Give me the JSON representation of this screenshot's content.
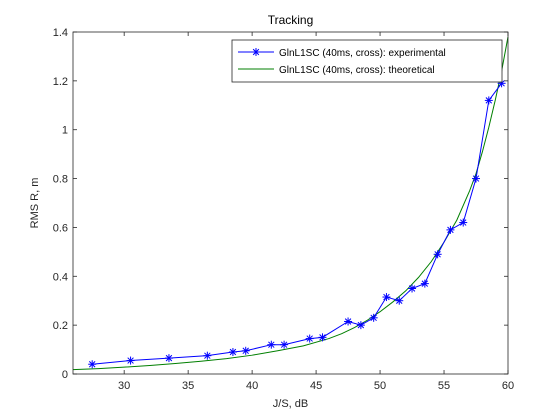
{
  "chart_data": {
    "type": "line",
    "title": "Tracking",
    "xlabel": "J/S, dB",
    "ylabel": "RMS R, m",
    "xlim": [
      26,
      60
    ],
    "ylim": [
      0,
      1.4
    ],
    "xticks": [
      30,
      35,
      40,
      45,
      50,
      55,
      60
    ],
    "yticks": [
      0,
      0.2,
      0.4,
      0.6,
      0.8,
      1,
      1.2,
      1.4
    ],
    "xtick_labels": [
      "30",
      "35",
      "40",
      "45",
      "50",
      "55",
      "60"
    ],
    "ytick_labels": [
      "0",
      "0.2",
      "0.4",
      "0.6",
      "0.8",
      "1",
      "1.2",
      "1.4"
    ],
    "grid": false,
    "legend_position": "top-right",
    "series": [
      {
        "name": "GlnL1SC (40ms, cross): experimental",
        "color": "#0000ff",
        "marker": "asterisk",
        "x": [
          27.5,
          30.5,
          33.5,
          36.5,
          38.5,
          39.5,
          41.5,
          42.5,
          44.5,
          45.5,
          47.5,
          48.5,
          49.5,
          50.5,
          51.5,
          52.5,
          53.5,
          54.5,
          55.5,
          56.5,
          57.5,
          58.5,
          59.5
        ],
        "y": [
          0.04,
          0.055,
          0.065,
          0.075,
          0.09,
          0.095,
          0.12,
          0.12,
          0.145,
          0.15,
          0.215,
          0.2,
          0.23,
          0.315,
          0.3,
          0.35,
          0.37,
          0.49,
          0.59,
          0.62,
          0.8,
          1.12,
          1.19
        ]
      },
      {
        "name": "GlnL1SC (40ms, cross): theoretical",
        "color": "#007f00",
        "marker": "none",
        "x": [
          26,
          28,
          30,
          32,
          34,
          36,
          38,
          40,
          42,
          44,
          46,
          47,
          48,
          49,
          50,
          51,
          52,
          53,
          54,
          55,
          56,
          57,
          57.5,
          58,
          58.5,
          59,
          59.5,
          60
        ],
        "y": [
          0.018,
          0.022,
          0.028,
          0.035,
          0.043,
          0.052,
          0.063,
          0.077,
          0.095,
          0.115,
          0.145,
          0.165,
          0.19,
          0.22,
          0.255,
          0.295,
          0.34,
          0.395,
          0.46,
          0.54,
          0.63,
          0.75,
          0.82,
          0.91,
          1.01,
          1.12,
          1.24,
          1.38
        ]
      }
    ]
  }
}
